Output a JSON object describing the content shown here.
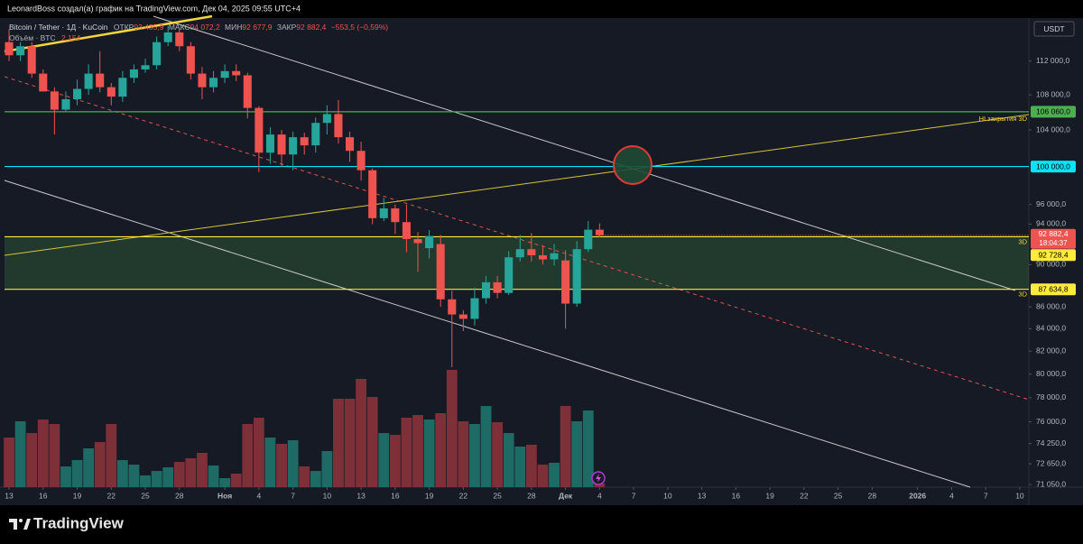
{
  "header": {
    "author": "LeonardBoss создал(а) график на TradingView.com, Дек 04, 2025 09:55 UTC+4"
  },
  "footer": {
    "brand": "TradingView"
  },
  "chart_data": {
    "type": "candlestick",
    "symbol": "Bitcoin / Tether · 1Д · KuCoin",
    "legend": {
      "open_label": "ОТКР",
      "open": "93 435,9",
      "high_label": "МАКС",
      "high": "94 072,2",
      "low_label": "МИН",
      "low": "92 677,9",
      "close_label": "ЗАКР",
      "close": "92 882,4",
      "change": "−553,5 (−0,59%)"
    },
    "volume_label": "Объём · BTC",
    "volume_value": "2,154",
    "currency": "USDT",
    "log_scale": true,
    "grid": false,
    "up_color": "#26a69a",
    "down_color": "#ef5350",
    "volume_up_color": "#1e6b66",
    "volume_down_color": "#7d3038",
    "x": [
      0,
      1,
      2,
      3,
      4,
      5,
      6,
      7,
      8,
      9,
      10,
      11,
      12,
      13,
      14,
      15,
      16,
      17,
      18,
      19,
      20,
      21,
      22,
      23,
      24,
      25,
      26,
      27,
      28,
      29,
      30,
      31,
      32,
      33,
      34,
      35,
      36,
      37,
      38,
      39,
      40,
      41,
      42,
      43,
      44,
      45,
      46,
      47,
      48,
      49,
      50,
      51,
      52
    ],
    "open": [
      114300,
      112700,
      113800,
      110500,
      108400,
      106300,
      107500,
      108700,
      110500,
      108900,
      107800,
      110000,
      111000,
      111500,
      114300,
      115500,
      113800,
      110500,
      108900,
      110000,
      110800,
      110300,
      106500,
      101500,
      103500,
      101300,
      103200,
      102300,
      104800,
      105800,
      103200,
      101700,
      99600,
      94600,
      95600,
      94200,
      92500,
      91600,
      92000,
      86700,
      85300,
      84900,
      86800,
      88300,
      87300,
      90700,
      91500,
      90900,
      90500,
      90400,
      86300,
      91500,
      93435.9
    ],
    "high": [
      115900,
      114300,
      114300,
      111000,
      108900,
      108400,
      109800,
      111600,
      113200,
      109400,
      110800,
      111600,
      112300,
      115000,
      116300,
      116000,
      114300,
      111300,
      110800,
      111600,
      111600,
      110600,
      106700,
      104300,
      104000,
      103800,
      103700,
      105400,
      106800,
      107400,
      103800,
      102700,
      99800,
      96700,
      96000,
      96000,
      93200,
      93400,
      92900,
      87500,
      85700,
      87800,
      88900,
      88900,
      91300,
      92900,
      93100,
      91900,
      92000,
      91400,
      92300,
      94300,
      94072.2
    ],
    "low": [
      112000,
      112000,
      110000,
      108400,
      103500,
      106000,
      106800,
      108000,
      108300,
      106800,
      107200,
      109400,
      110600,
      111000,
      113800,
      113200,
      109800,
      107500,
      108300,
      109400,
      109600,
      105300,
      99400,
      100300,
      100000,
      99600,
      101300,
      101500,
      103500,
      102500,
      100500,
      98500,
      94000,
      94300,
      93000,
      91200,
      89300,
      90600,
      86000,
      80600,
      83800,
      84300,
      86300,
      86800,
      87100,
      90300,
      90300,
      90000,
      89900,
      84000,
      86000,
      91200,
      92677.9
    ],
    "close": [
      112700,
      113800,
      110500,
      108400,
      106300,
      107500,
      108700,
      110500,
      108900,
      107800,
      110000,
      111000,
      111500,
      114300,
      115500,
      113800,
      110500,
      108900,
      110000,
      110800,
      110300,
      106500,
      101500,
      103500,
      101300,
      103200,
      102300,
      104800,
      105800,
      103200,
      101700,
      99600,
      94600,
      95600,
      94200,
      92500,
      92100,
      92800,
      86700,
      85300,
      84900,
      86800,
      88300,
      87300,
      90700,
      91500,
      90900,
      90500,
      91100,
      86300,
      91500,
      93435.9,
      92882.4
    ],
    "volume": [
      1375,
      1825,
      1500,
      1875,
      1750,
      575,
      750,
      1075,
      1250,
      1750,
      750,
      625,
      325,
      450,
      550,
      700,
      800,
      950,
      600,
      250,
      375,
      1750,
      1925,
      1375,
      1200,
      1300,
      575,
      450,
      1000,
      2450,
      2450,
      3000,
      2500,
      1500,
      1450,
      1925,
      2000,
      1875,
      2050,
      3250,
      1825,
      1750,
      2250,
      1800,
      1500,
      1125,
      1175,
      625,
      675,
      2250,
      1825,
      2125,
      100
    ],
    "volume_lim": [
      0,
      13000
    ],
    "last_price_label": "92 882,4",
    "countdown": "18:04:37",
    "xlim": [
      -0.4,
      89.8
    ],
    "xticks": [
      {
        "value": 0,
        "label": "13"
      },
      {
        "value": 3,
        "label": "16"
      },
      {
        "value": 6,
        "label": "19"
      },
      {
        "value": 9,
        "label": "22"
      },
      {
        "value": 12,
        "label": "25"
      },
      {
        "value": 15,
        "label": "28"
      },
      {
        "value": 19,
        "label": "Ноя"
      },
      {
        "value": 22,
        "label": "4"
      },
      {
        "value": 25,
        "label": "7"
      },
      {
        "value": 28,
        "label": "10"
      },
      {
        "value": 31,
        "label": "13"
      },
      {
        "value": 34,
        "label": "16"
      },
      {
        "value": 37,
        "label": "19"
      },
      {
        "value": 40,
        "label": "22"
      },
      {
        "value": 43,
        "label": "25"
      },
      {
        "value": 46,
        "label": "28"
      },
      {
        "value": 49,
        "label": "Дек"
      },
      {
        "value": 52,
        "label": "4"
      },
      {
        "value": 55,
        "label": "7"
      },
      {
        "value": 58,
        "label": "10"
      },
      {
        "value": 61,
        "label": "13"
      },
      {
        "value": 64,
        "label": "16"
      },
      {
        "value": 67,
        "label": "19"
      },
      {
        "value": 70,
        "label": "22"
      },
      {
        "value": 73,
        "label": "25"
      },
      {
        "value": 76,
        "label": "28"
      },
      {
        "value": 80,
        "label": "2026"
      },
      {
        "value": 83,
        "label": "4"
      },
      {
        "value": 86,
        "label": "7"
      },
      {
        "value": 89,
        "label": "10"
      }
    ],
    "ylim": [
      70850,
      117300
    ],
    "yticks": [
      {
        "value": 112000,
        "label": "112 000,0"
      },
      {
        "value": 108000,
        "label": "108 000,0"
      },
      {
        "value": 104000,
        "label": "104 000,0"
      },
      {
        "value": 96000,
        "label": "96 000,0"
      },
      {
        "value": 94000,
        "label": "94 000,0"
      },
      {
        "value": 90000,
        "label": "90 000,0"
      },
      {
        "value": 86000,
        "label": "86 000,0"
      },
      {
        "value": 84000,
        "label": "84 000,0"
      },
      {
        "value": 82000,
        "label": "82 000,0"
      },
      {
        "value": 80000,
        "label": "80 000,0"
      },
      {
        "value": 78000,
        "label": "78 000,0"
      },
      {
        "value": 76000,
        "label": "76 000,0"
      },
      {
        "value": 74250,
        "label": "74 250,0"
      },
      {
        "value": 72650,
        "label": "72 650,0"
      },
      {
        "value": 71050,
        "label": "71 050,0"
      }
    ],
    "levels": [
      {
        "value": 106060,
        "label": "106 060,0",
        "color": "#4caf50"
      },
      {
        "value": 100000,
        "label": "100 000,0",
        "color": "#00e5ff"
      },
      {
        "value": 92728.4,
        "label": "92 728,4",
        "color": "#ffeb3b",
        "fill_to_next": "rgba(76,175,80,0.22)"
      },
      {
        "value": 87634.8,
        "label": "87 634,8",
        "color": "#ffeb3b"
      }
    ],
    "annotations": [
      "HI закрытия 3D",
      "3D",
      "3D"
    ]
  }
}
